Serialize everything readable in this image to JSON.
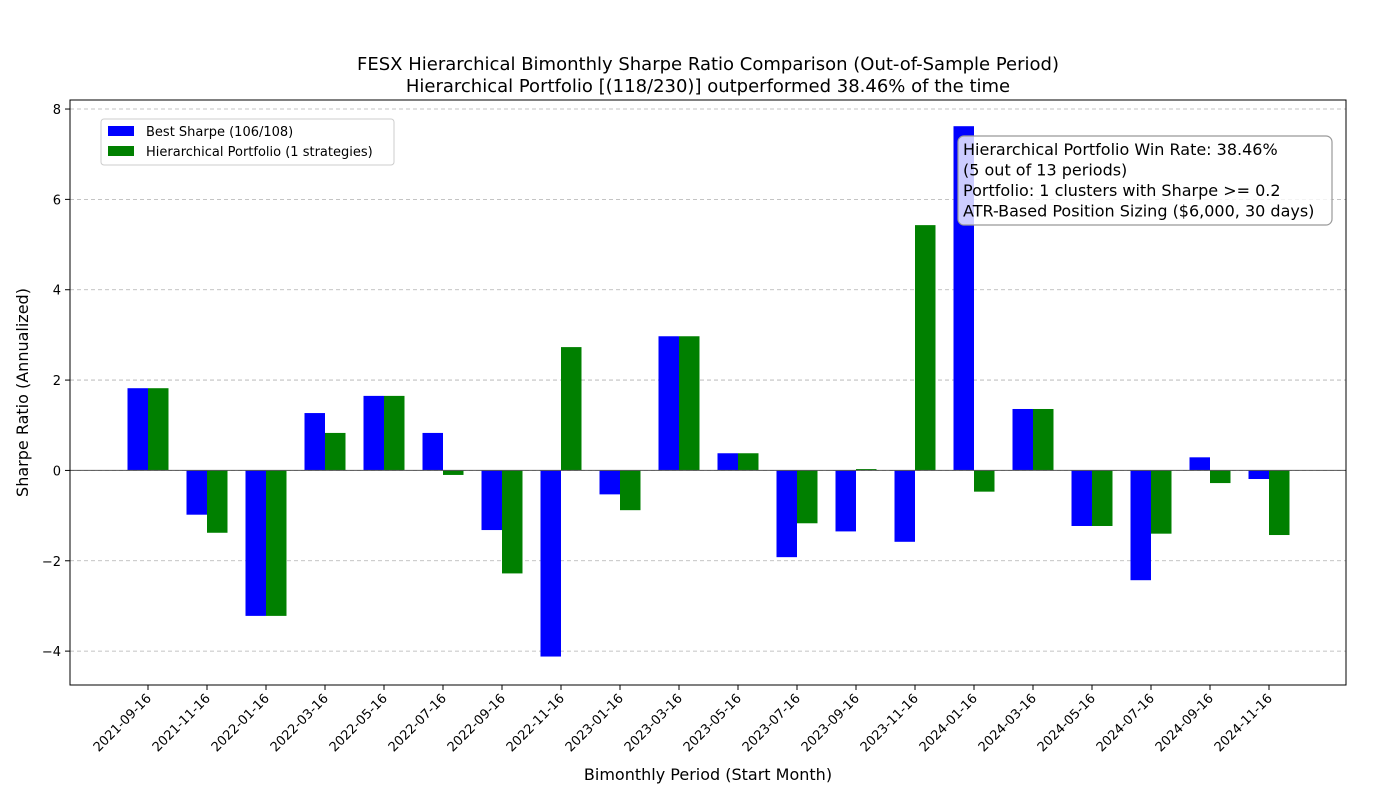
{
  "chart_data": {
    "type": "bar",
    "title": "FESX Hierarchical Bimonthly Sharpe Ratio Comparison (Out-of-Sample Period)",
    "subtitle": "Hierarchical Portfolio [(118/230)] outperformed 38.46% of the time",
    "xlabel": "Bimonthly Period (Start Month)",
    "ylabel": "Sharpe Ratio (Annualized)",
    "ylim": [
      -4.75,
      8.2
    ],
    "yticks": [
      -4,
      -2,
      0,
      2,
      4,
      6,
      8
    ],
    "ytick_labels": [
      "−4",
      "−2",
      "0",
      "2",
      "4",
      "6",
      "8"
    ],
    "grid": "y-dashed",
    "legend_position": "top-left",
    "categories": [
      "2021-09-16",
      "2021-11-16",
      "2022-01-16",
      "2022-03-16",
      "2022-05-16",
      "2022-07-16",
      "2022-09-16",
      "2022-11-16",
      "2023-01-16",
      "2023-03-16",
      "2023-05-16",
      "2023-07-16",
      "2023-09-16",
      "2023-11-16",
      "2024-01-16",
      "2024-03-16",
      "2024-05-16",
      "2024-07-16",
      "2024-09-16",
      "2024-11-16"
    ],
    "series": [
      {
        "name": "Best Sharpe (106/108)",
        "color": "#0000ff",
        "values": [
          1.82,
          -0.98,
          -3.22,
          1.27,
          1.65,
          0.83,
          -1.32,
          -4.12,
          -0.53,
          2.97,
          0.38,
          -1.92,
          -1.35,
          -1.58,
          7.62,
          1.36,
          -1.23,
          -2.43,
          0.29,
          -0.19
        ]
      },
      {
        "name": "Hierarchical Portfolio (1 strategies)",
        "color": "#008000",
        "values": [
          1.82,
          -1.38,
          -3.22,
          0.83,
          1.65,
          -0.1,
          -2.28,
          2.73,
          -0.88,
          2.97,
          0.38,
          -1.17,
          0.03,
          5.43,
          -0.47,
          1.36,
          -1.23,
          -1.4,
          -0.28,
          -1.43
        ]
      }
    ],
    "annotation": [
      "Hierarchical Portfolio Win Rate: 38.46%",
      "(5 out of 13 periods)",
      "Portfolio: 1 clusters with Sharpe >= 0.2",
      "ATR-Based Position Sizing ($6,000, 30 days)"
    ]
  }
}
